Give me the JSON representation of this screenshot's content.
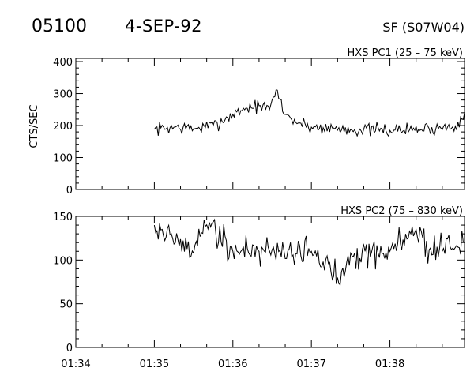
{
  "header": {
    "event_id": "05100",
    "date": "4-SEP-92",
    "flare": "SF (S07W04)"
  },
  "chart_data": [
    {
      "type": "line",
      "title": "HXS PC1 (25 – 75 keV)",
      "ylabel": "CTS/SEC",
      "ylim": [
        0,
        410
      ],
      "yticks": [
        0,
        100,
        200,
        300,
        400
      ],
      "xlim": [
        "01:34",
        "01:38:57"
      ],
      "xticks": [
        "01:34",
        "01:35",
        "01:36",
        "01:37",
        "01:38"
      ],
      "show_xtick_labels": false,
      "series": [
        {
          "x": [
            "01:35:00",
            "01:35:15",
            "01:35:30",
            "01:35:45",
            "01:36:00",
            "01:36:10",
            "01:36:20",
            "01:36:28",
            "01:36:33",
            "01:36:40",
            "01:36:50",
            "01:37:00",
            "01:37:30",
            "01:38:00",
            "01:38:30",
            "01:38:50",
            "01:38:57"
          ],
          "values": [
            188,
            195,
            190,
            200,
            235,
            255,
            262,
            250,
            312,
            235,
            208,
            195,
            188,
            185,
            190,
            198,
            240
          ]
        }
      ]
    },
    {
      "type": "line",
      "title": "HXS PC2 (75 – 830 keV)",
      "ylabel": "",
      "ylim": [
        0,
        150
      ],
      "yticks": [
        0,
        50,
        100,
        150
      ],
      "xlim": [
        "01:34",
        "01:38:57"
      ],
      "xticks": [
        "01:34",
        "01:35",
        "01:36",
        "01:37",
        "01:38"
      ],
      "show_xtick_labels": true,
      "series": [
        {
          "x": [
            "01:35:00",
            "01:35:30",
            "01:35:38",
            "01:36:00",
            "01:36:30",
            "01:37:00",
            "01:37:20",
            "01:37:30",
            "01:38:00",
            "01:38:20",
            "01:38:30",
            "01:38:57"
          ],
          "values": [
            140,
            108,
            146,
            110,
            112,
            110,
            80,
            108,
            110,
            135,
            112,
            120
          ]
        }
      ]
    }
  ]
}
